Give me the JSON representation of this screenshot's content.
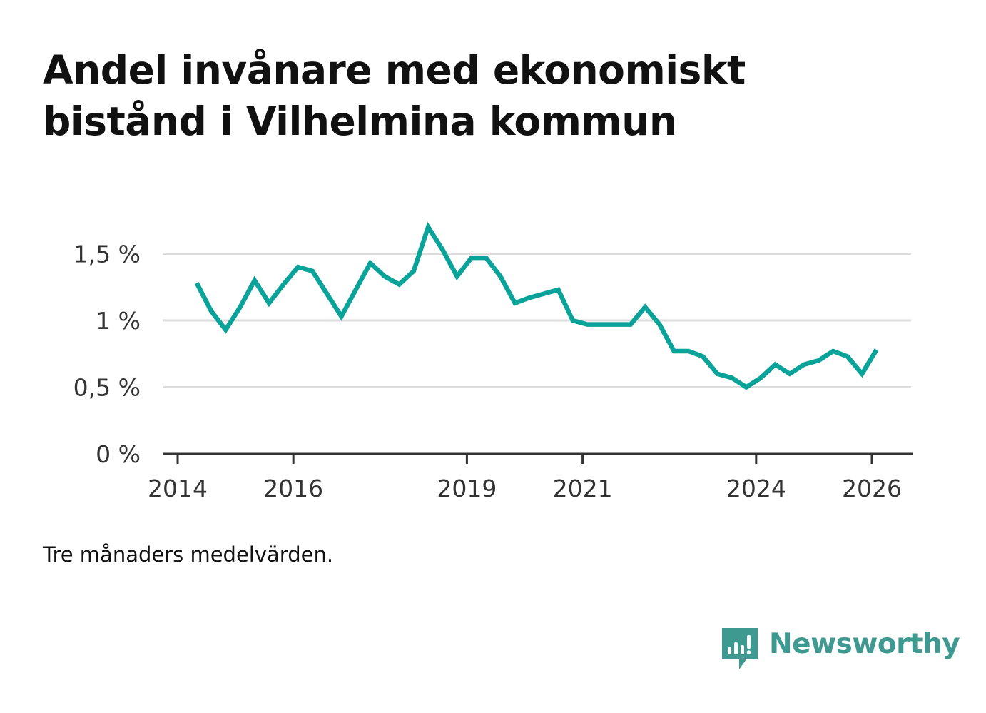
{
  "title": {
    "line1": "Andel invånare med ekonomiskt",
    "line2": "bistånd i Vilhelmina kommun"
  },
  "caption": "Tre månaders medelvärden.",
  "brand": {
    "name": "Newsworthy",
    "icon": "newsworthy-chart-logo-icon"
  },
  "colors": {
    "line": "#0aa39a",
    "grid": "#dddddd",
    "axis": "#333333",
    "brand": "#3e9a91"
  },
  "chart_data": {
    "type": "line",
    "title": "Andel invånare med ekonomiskt bistånd i Vilhelmina kommun",
    "xlabel": "",
    "ylabel": "",
    "grid": true,
    "legend": "none",
    "xlim": [
      2013.9,
      2026.7
    ],
    "ylim": [
      0,
      1.7
    ],
    "x_ticks": [
      {
        "value": 2014,
        "label": "2014"
      },
      {
        "value": 2016,
        "label": "2016"
      },
      {
        "value": 2019,
        "label": "2019"
      },
      {
        "value": 2021,
        "label": "2021"
      },
      {
        "value": 2024,
        "label": "2024"
      },
      {
        "value": 2026,
        "label": "2026"
      }
    ],
    "y_ticks": [
      {
        "value": 0,
        "label": "0 %"
      },
      {
        "value": 0.5,
        "label": "0,5 %"
      },
      {
        "value": 1,
        "label": "1 %"
      },
      {
        "value": 1.5,
        "label": "1,5 %"
      }
    ],
    "series": [
      {
        "name": "Andel invånare med ekonomiskt bistånd",
        "x": [
          2014.33,
          2014.58,
          2014.83,
          2015.08,
          2015.33,
          2015.58,
          2015.83,
          2016.08,
          2016.33,
          2016.58,
          2016.83,
          2017.08,
          2017.33,
          2017.58,
          2017.83,
          2018.08,
          2018.33,
          2018.58,
          2018.83,
          2019.08,
          2019.33,
          2019.58,
          2019.83,
          2020.08,
          2020.33,
          2020.58,
          2020.83,
          2021.08,
          2021.33,
          2021.58,
          2021.83,
          2022.08,
          2022.33,
          2022.58,
          2022.83,
          2023.08,
          2023.33,
          2023.58,
          2023.83,
          2024.08,
          2024.33,
          2024.58,
          2024.83,
          2025.08,
          2025.33,
          2025.58,
          2025.83,
          2026.08
        ],
        "values": [
          1.28,
          1.07,
          0.93,
          1.1,
          1.3,
          1.13,
          1.27,
          1.4,
          1.37,
          1.2,
          1.03,
          1.23,
          1.43,
          1.33,
          1.27,
          1.37,
          1.7,
          1.53,
          1.33,
          1.47,
          1.47,
          1.33,
          1.13,
          1.17,
          1.2,
          1.23,
          1.0,
          0.97,
          0.97,
          0.97,
          0.97,
          1.1,
          0.97,
          0.77,
          0.77,
          0.73,
          0.6,
          0.57,
          0.5,
          0.57,
          0.67,
          0.6,
          0.67,
          0.7,
          0.77,
          0.73,
          0.6,
          0.78
        ]
      }
    ]
  }
}
